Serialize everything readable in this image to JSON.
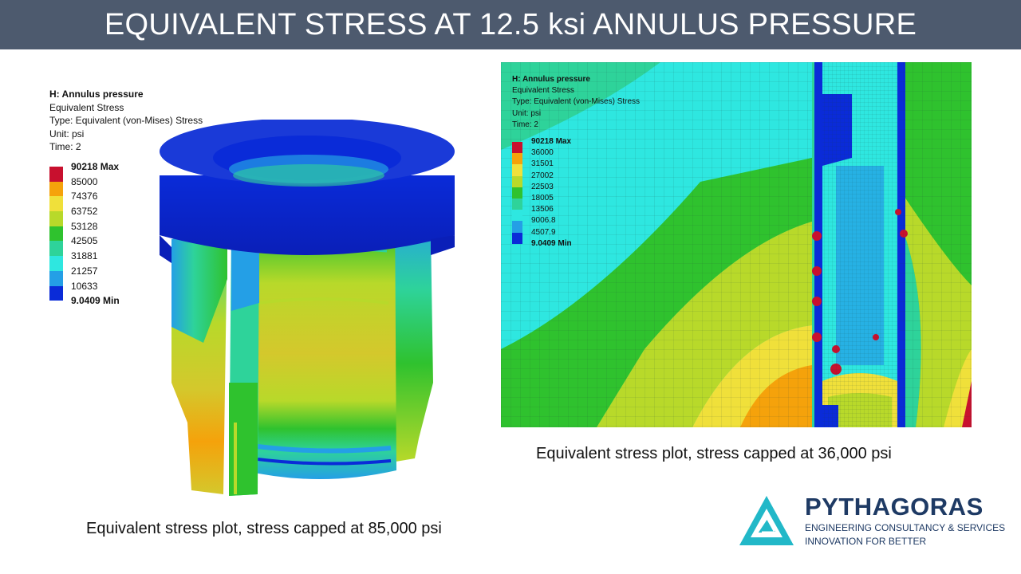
{
  "slide": {
    "title": "EQUIVALENT STRESS AT 12.5 ksi ANNULUS PRESSURE"
  },
  "left_plot": {
    "legend": {
      "header": [
        "H: Annulus pressure",
        "Equivalent Stress",
        "Type: Equivalent (von-Mises) Stress",
        "Unit: psi",
        "Time: 2"
      ],
      "entries": [
        {
          "label": "90218 Max",
          "color": "#c8102e"
        },
        {
          "label": "85000",
          "color": "#f5a20b"
        },
        {
          "label": "74376",
          "color": "#f0e03a"
        },
        {
          "label": "63752",
          "color": "#b8d92a"
        },
        {
          "label": "53128",
          "color": "#2fc22e"
        },
        {
          "label": "42505",
          "color": "#2ed39a"
        },
        {
          "label": "31881",
          "color": "#2ee7e0"
        },
        {
          "label": "21257",
          "color": "#249fe6"
        },
        {
          "label": "10633",
          "color": "#0a2bd8"
        },
        {
          "label": "9.0409 Min",
          "color": null
        }
      ]
    },
    "caption": "Equivalent stress plot, stress capped at 85,000 psi"
  },
  "right_plot": {
    "legend": {
      "header": [
        "H: Annulus pressure",
        "Equivalent Stress",
        "Type: Equivalent (von-Mises) Stress",
        "Unit: psi",
        "Time: 2"
      ],
      "entries": [
        {
          "label": "90218 Max",
          "color": "#c8102e"
        },
        {
          "label": "36000",
          "color": "#f5a20b"
        },
        {
          "label": "31501",
          "color": "#f0e03a"
        },
        {
          "label": "27002",
          "color": "#b8d92a"
        },
        {
          "label": "22503",
          "color": "#2fc22e"
        },
        {
          "label": "18005",
          "color": "#2ed39a"
        },
        {
          "label": "13506",
          "color": "#2ee7e0"
        },
        {
          "label": "9006.8",
          "color": "#249fe6"
        },
        {
          "label": "4507.9",
          "color": "#0a2bd8"
        },
        {
          "label": "9.0409 Min",
          "color": null
        }
      ]
    },
    "caption": "Equivalent stress plot, stress capped at 36,000 psi"
  },
  "logo": {
    "name": "PYTHAGORAS",
    "subtitle": "ENGINEERING CONSULTANCY & SERVICES",
    "tagline": "INNOVATION FOR BETTER",
    "colors": {
      "navy": "#1e3a64",
      "teal": "#22b8c8"
    }
  },
  "colors": {
    "title_bar": "#4d5a6e",
    "title_text": "#ffffff"
  }
}
